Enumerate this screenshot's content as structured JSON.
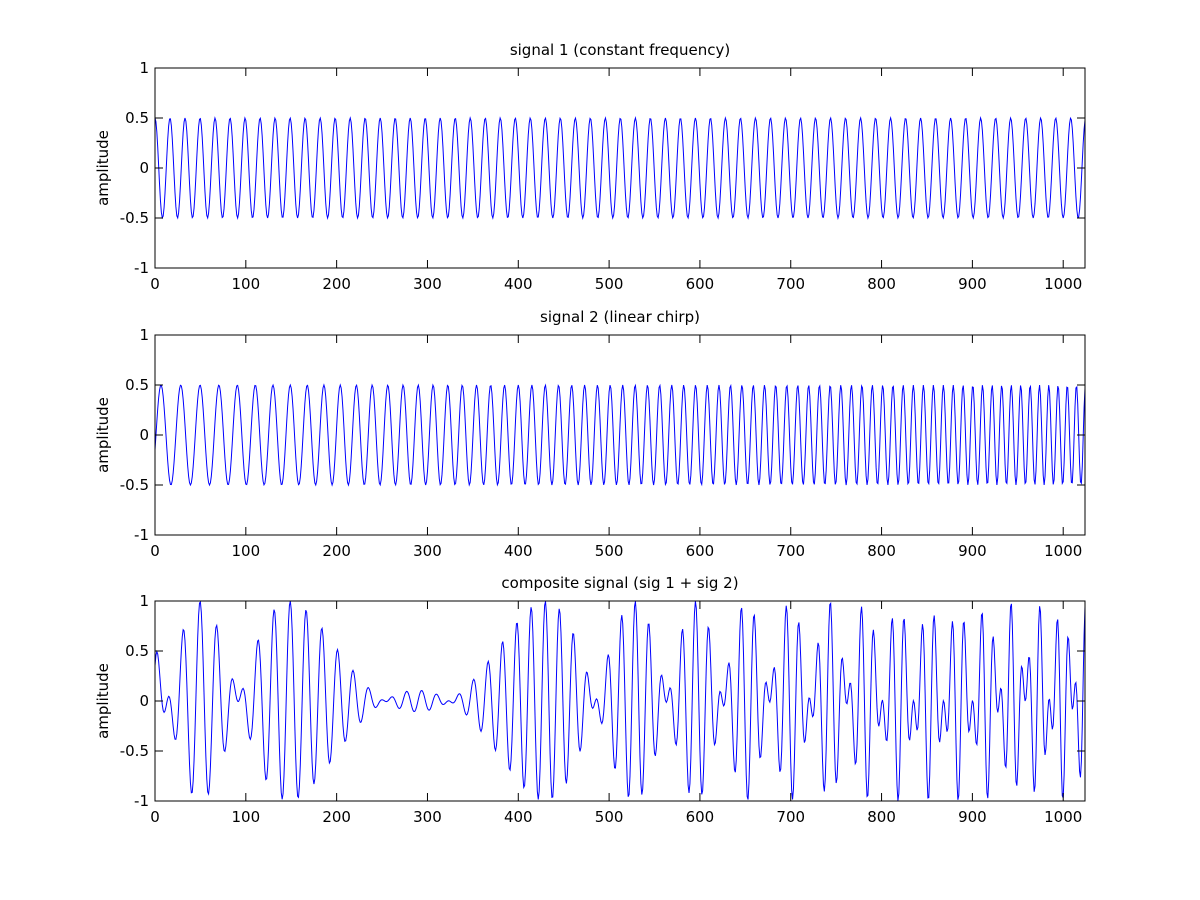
{
  "chart_data": [
    {
      "type": "line",
      "title": "signal 1 (constant frequency)",
      "xlabel": "",
      "ylabel": "amplitude",
      "xlim": [
        0,
        1024
      ],
      "ylim": [
        -1,
        1
      ],
      "xticks": [
        0,
        100,
        200,
        300,
        400,
        500,
        600,
        700,
        800,
        900,
        1000
      ],
      "yticks": [
        -1,
        -0.5,
        0,
        0.5,
        1
      ],
      "grid": false,
      "line_color": "#0000ff",
      "signal": {
        "kind": "sine",
        "amplitude": 0.5,
        "cycles_per_sample": 0.0605,
        "phase": 1.5708
      }
    },
    {
      "type": "line",
      "title": "signal 2 (linear chirp)",
      "xlabel": "",
      "ylabel": "amplitude",
      "xlim": [
        0,
        1024
      ],
      "ylim": [
        -1,
        1
      ],
      "xticks": [
        0,
        100,
        200,
        300,
        400,
        500,
        600,
        700,
        800,
        900,
        1000
      ],
      "yticks": [
        -1,
        -0.5,
        0,
        0.5,
        1
      ],
      "grid": false,
      "line_color": "#0000ff",
      "signal": {
        "kind": "linear-chirp",
        "amplitude": 0.5,
        "start_cycles_per_sample": 0.045,
        "end_cycles_per_sample": 0.1,
        "phase": -0.3
      }
    },
    {
      "type": "line",
      "title": "composite signal (sig 1 + sig 2)",
      "xlabel": "",
      "ylabel": "amplitude",
      "xlim": [
        0,
        1024
      ],
      "ylim": [
        -1,
        1
      ],
      "xticks": [
        0,
        100,
        200,
        300,
        400,
        500,
        600,
        700,
        800,
        900,
        1000
      ],
      "yticks": [
        -1,
        -0.5,
        0,
        0.5,
        1
      ],
      "grid": false,
      "line_color": "#0000ff",
      "signal": {
        "kind": "sum-of-signal-1-and-signal-2"
      }
    }
  ]
}
